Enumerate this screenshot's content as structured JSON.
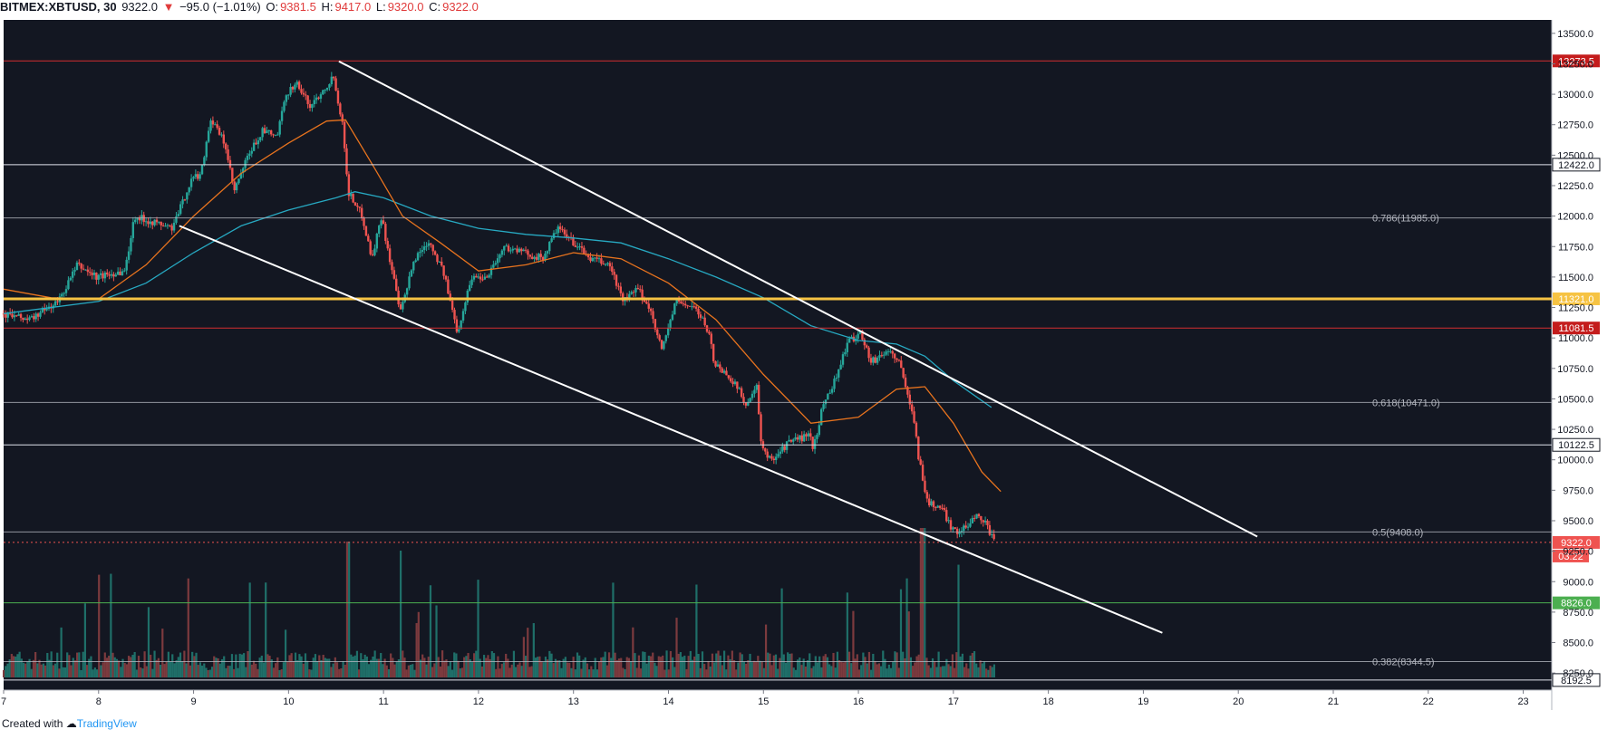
{
  "header": {
    "symbol": "BITMEX:XBTUSD, 30",
    "last": "9322.0",
    "arrow": "▼",
    "change": "−95.0 (−1.01%)",
    "o_label": "O:",
    "o_value": "9381.5",
    "h_label": "H:",
    "h_value": "9417.0",
    "l_label": "L:",
    "l_value": "9320.0",
    "c_label": "C:",
    "c_value": "9322.0"
  },
  "footer": {
    "created_with": "Created with",
    "brand": "TradingView"
  },
  "colors": {
    "background": "#131722",
    "up": "#26a69a",
    "down": "#ef5350",
    "ema_fast": "#e8731e",
    "ema_slow": "#27a9c2",
    "fib_line": "#b2b5be",
    "support": "#ffffff",
    "yellow_level": "#f6c343",
    "red_level": "#d32f2f",
    "green_level": "#4caf50",
    "channel": "#ffffff"
  },
  "chart_data": {
    "type": "candlestick",
    "title": "BITMEX:XBTUSD, 30",
    "xlabel": "",
    "ylabel": "",
    "ylim": [
      8110,
      13610
    ],
    "xlim": [
      7.0,
      23.3
    ],
    "y_ticks": [
      "13500.0",
      "13250.0",
      "13000.0",
      "12750.0",
      "12500.0",
      "12250.0",
      "12000.0",
      "11750.0",
      "11500.0",
      "11250.0",
      "11000.0",
      "10750.0",
      "10500.0",
      "10250.0",
      "10000.0",
      "9750.0",
      "9500.0",
      "9250.0",
      "9000.0",
      "8750.0",
      "8500.0",
      "8250.0"
    ],
    "x_ticks": [
      "7",
      "8",
      "9",
      "10",
      "11",
      "12",
      "13",
      "14",
      "15",
      "16",
      "17",
      "18",
      "19",
      "20",
      "21",
      "22",
      "23"
    ],
    "price_path": [
      [
        7.0,
        11200
      ],
      [
        7.3,
        11150
      ],
      [
        7.6,
        11300
      ],
      [
        7.8,
        11600
      ],
      [
        8.0,
        11500
      ],
      [
        8.3,
        11550
      ],
      [
        8.4,
        12000
      ],
      [
        8.6,
        11950
      ],
      [
        8.8,
        11900
      ],
      [
        9.0,
        12300
      ],
      [
        9.1,
        12350
      ],
      [
        9.2,
        12800
      ],
      [
        9.35,
        12600
      ],
      [
        9.45,
        12200
      ],
      [
        9.6,
        12500
      ],
      [
        9.75,
        12700
      ],
      [
        9.9,
        12650
      ],
      [
        10.0,
        13000
      ],
      [
        10.1,
        13100
      ],
      [
        10.25,
        12900
      ],
      [
        10.4,
        13050
      ],
      [
        10.5,
        13150
      ],
      [
        10.6,
        12700
      ],
      [
        10.65,
        12200
      ],
      [
        10.8,
        12000
      ],
      [
        10.9,
        11650
      ],
      [
        11.0,
        12000
      ],
      [
        11.1,
        11600
      ],
      [
        11.2,
        11200
      ],
      [
        11.35,
        11650
      ],
      [
        11.5,
        11800
      ],
      [
        11.65,
        11550
      ],
      [
        11.8,
        11050
      ],
      [
        11.95,
        11500
      ],
      [
        12.1,
        11500
      ],
      [
        12.3,
        11750
      ],
      [
        12.5,
        11700
      ],
      [
        12.7,
        11650
      ],
      [
        12.85,
        11900
      ],
      [
        13.0,
        11800
      ],
      [
        13.2,
        11650
      ],
      [
        13.4,
        11600
      ],
      [
        13.55,
        11300
      ],
      [
        13.7,
        11400
      ],
      [
        13.85,
        11200
      ],
      [
        13.95,
        10900
      ],
      [
        14.1,
        11300
      ],
      [
        14.3,
        11250
      ],
      [
        14.45,
        11050
      ],
      [
        14.5,
        10800
      ],
      [
        14.7,
        10650
      ],
      [
        14.85,
        10450
      ],
      [
        14.95,
        10600
      ],
      [
        15.0,
        10100
      ],
      [
        15.1,
        10000
      ],
      [
        15.3,
        10150
      ],
      [
        15.5,
        10200
      ],
      [
        15.55,
        10100
      ],
      [
        15.65,
        10450
      ],
      [
        15.8,
        10700
      ],
      [
        15.9,
        10950
      ],
      [
        16.05,
        11050
      ],
      [
        16.15,
        10800
      ],
      [
        16.35,
        10900
      ],
      [
        16.45,
        10800
      ],
      [
        16.55,
        10500
      ],
      [
        16.6,
        10400
      ],
      [
        16.65,
        10050
      ],
      [
        16.75,
        9650
      ],
      [
        16.9,
        9600
      ],
      [
        17.0,
        9450
      ],
      [
        17.1,
        9400
      ],
      [
        17.25,
        9550
      ],
      [
        17.35,
        9500
      ],
      [
        17.45,
        9322
      ]
    ],
    "ema_fast": [
      [
        7.0,
        11400
      ],
      [
        7.5,
        11330
      ],
      [
        8.0,
        11320
      ],
      [
        8.5,
        11600
      ],
      [
        9.0,
        12000
      ],
      [
        9.5,
        12350
      ],
      [
        10.0,
        12600
      ],
      [
        10.4,
        12780
      ],
      [
        10.6,
        12790
      ],
      [
        10.9,
        12400
      ],
      [
        11.2,
        12000
      ],
      [
        11.6,
        11780
      ],
      [
        12.0,
        11550
      ],
      [
        12.5,
        11600
      ],
      [
        13.0,
        11700
      ],
      [
        13.5,
        11650
      ],
      [
        14.0,
        11450
      ],
      [
        14.5,
        11150
      ],
      [
        15.0,
        10700
      ],
      [
        15.5,
        10300
      ],
      [
        16.0,
        10350
      ],
      [
        16.4,
        10580
      ],
      [
        16.7,
        10600
      ],
      [
        17.0,
        10300
      ],
      [
        17.3,
        9900
      ],
      [
        17.5,
        9740
      ]
    ],
    "ema_slow": [
      [
        7.0,
        11200
      ],
      [
        8.0,
        11300
      ],
      [
        8.5,
        11450
      ],
      [
        9.0,
        11700
      ],
      [
        9.5,
        11920
      ],
      [
        10.0,
        12050
      ],
      [
        10.5,
        12150
      ],
      [
        10.7,
        12200
      ],
      [
        11.0,
        12150
      ],
      [
        11.5,
        12000
      ],
      [
        12.0,
        11900
      ],
      [
        12.5,
        11850
      ],
      [
        13.0,
        11820
      ],
      [
        13.5,
        11780
      ],
      [
        14.0,
        11650
      ],
      [
        14.5,
        11500
      ],
      [
        15.0,
        11330
      ],
      [
        15.5,
        11100
      ],
      [
        16.0,
        10980
      ],
      [
        16.4,
        10950
      ],
      [
        16.7,
        10850
      ],
      [
        17.0,
        10650
      ],
      [
        17.4,
        10430
      ]
    ],
    "fib_levels": [
      {
        "label": "0.786(11985.0)",
        "value": 11985.0
      },
      {
        "label": "0.618(10471.0)",
        "value": 10471.0
      },
      {
        "label": "0.5(9408.0)",
        "value": 9408.0
      },
      {
        "label": "0.382(8344.5)",
        "value": 8344.5
      }
    ],
    "levels": [
      {
        "label": "13273.5",
        "value": 13273.5,
        "style": "red"
      },
      {
        "label": "12422.0",
        "value": 12422.0,
        "style": "white"
      },
      {
        "label": "11321.0",
        "value": 11321.0,
        "style": "yellow"
      },
      {
        "label": "11081.5",
        "value": 11081.5,
        "style": "red"
      },
      {
        "label": "10122.5",
        "value": 10122.5,
        "style": "white"
      },
      {
        "label": "8826.0",
        "value": 8826.0,
        "style": "green"
      },
      {
        "label": "8192.5",
        "value": 8192.5,
        "style": "white"
      }
    ],
    "last_price": {
      "label": "9322.0",
      "value": 9322.0,
      "countdown": "03:22"
    },
    "trend_lines": [
      {
        "name": "upper-channel",
        "from": [
          10.53,
          13270
        ],
        "to": [
          20.2,
          9370
        ]
      },
      {
        "name": "lower-channel",
        "from": [
          8.85,
          11920
        ],
        "to": [
          19.2,
          8580
        ]
      }
    ]
  }
}
